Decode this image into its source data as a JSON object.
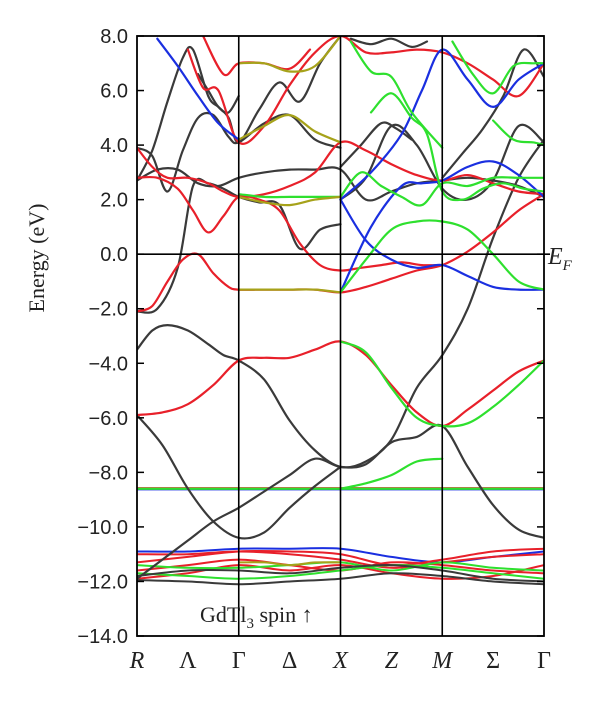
{
  "chart_data": {
    "type": "line",
    "title": "",
    "ylabel": "Energy (eV)",
    "xlabel": "",
    "ylim": [
      -14,
      8
    ],
    "yticks": [
      8.0,
      6.0,
      4.0,
      2.0,
      0.0,
      -2.0,
      -4.0,
      -6.0,
      -8.0,
      -10.0,
      -12.0,
      -14.0
    ],
    "ytick_labels": [
      "8.0",
      "6.0",
      "4.0",
      "2.0",
      "0.0",
      "−2.0",
      "−4.0",
      "−6.0",
      "−8.0",
      "−10.0",
      "−12.0",
      "−14.0"
    ],
    "kpath": [
      {
        "label": "R",
        "pos": 0.0,
        "italic": true,
        "vline": false
      },
      {
        "label": "Λ",
        "pos": 0.5,
        "italic": false,
        "vline": false
      },
      {
        "label": "Γ",
        "pos": 1.0,
        "italic": false,
        "vline": true
      },
      {
        "label": "Δ",
        "pos": 1.5,
        "italic": false,
        "vline": false
      },
      {
        "label": "X",
        "pos": 2.0,
        "italic": true,
        "vline": true
      },
      {
        "label": "Z",
        "pos": 2.5,
        "italic": true,
        "vline": false
      },
      {
        "label": "M",
        "pos": 3.0,
        "italic": true,
        "vline": true
      },
      {
        "label": "Σ",
        "pos": 3.5,
        "italic": false,
        "vline": false
      },
      {
        "label": "Γ",
        "pos": 4.0,
        "italic": false,
        "vline": false
      }
    ],
    "fermi_level": 0.0,
    "fermi_label": "E",
    "fermi_sub": "F",
    "annotation": {
      "main": "GdTl",
      "sub": "3",
      "rest": " spin ↑"
    },
    "colors": {
      "black": "#3a3a3a",
      "red": "#e8202a",
      "blue": "#1a2fe0",
      "green": "#2ee02e",
      "olive": "#a6a21a"
    },
    "series": [
      {
        "color": "black",
        "x": [
          0,
          0.25,
          0.5,
          0.75,
          1.0,
          1.25,
          1.5,
          1.75,
          2.0,
          2.25,
          2.5,
          2.75,
          3.0,
          3.25,
          3.5,
          3.75,
          4.0
        ],
        "y": [
          -11.9,
          -11.2,
          -10.5,
          -9.8,
          -9.3,
          -8.7,
          -8.1,
          -7.5,
          -7.8,
          -7.7,
          -6.9,
          -6.7,
          -6.3,
          -7.8,
          -9.2,
          -10.1,
          -10.4
        ]
      },
      {
        "color": "black",
        "x": [
          0,
          0.25,
          0.5,
          0.75,
          1.0,
          1.25,
          1.5,
          1.75,
          2.0
        ],
        "y": [
          -5.9,
          -7.0,
          -8.6,
          -9.8,
          -10.4,
          -10.2,
          -9.3,
          -8.5,
          -7.8
        ]
      },
      {
        "color": "black",
        "x": [
          0,
          0.15,
          0.3,
          0.5,
          0.7,
          0.85,
          1.0,
          1.25,
          1.5,
          1.75,
          2.0,
          2.25,
          2.5,
          2.75,
          3.0,
          3.25,
          3.5,
          3.75,
          4.0
        ],
        "y": [
          -3.5,
          -2.8,
          -2.6,
          -2.8,
          -3.3,
          -3.7,
          -3.9,
          -4.6,
          -6.1,
          -7.2,
          -7.8,
          -7.6,
          -6.8,
          -4.9,
          -3.7,
          -2.0,
          0.6,
          2.8,
          4.2
        ]
      },
      {
        "color": "black",
        "x": [
          0,
          0.2,
          0.4,
          0.6,
          0.8,
          1.0,
          1.25,
          1.5,
          1.75,
          2.0,
          2.25,
          2.5,
          2.75,
          3.0,
          3.25,
          3.5,
          3.75,
          4.0
        ],
        "y": [
          2.7,
          3.1,
          3.1,
          2.6,
          2.5,
          2.8,
          3.0,
          3.1,
          3.1,
          3.1,
          2.0,
          2.3,
          2.6,
          2.7,
          2.8,
          2.7,
          2.5,
          2.1
        ]
      },
      {
        "color": "black",
        "x": [
          0,
          0.2,
          0.4,
          0.55,
          0.7,
          0.85,
          1.0,
          1.2,
          1.4,
          1.6,
          1.8,
          2.0
        ],
        "y": [
          -2.1,
          -2.0,
          -0.5,
          2.5,
          2.6,
          2.4,
          2.1,
          1.9,
          1.8,
          0.2,
          0.9,
          1.1
        ]
      },
      {
        "color": "black",
        "x": [
          0,
          0.15,
          0.3,
          0.45,
          0.6,
          0.75,
          0.9,
          1.0,
          1.25,
          1.5,
          1.75,
          2.0
        ],
        "y": [
          3.9,
          3.6,
          2.3,
          3.8,
          5.0,
          5.1,
          4.3,
          4.1,
          4.8,
          5.1,
          4.2,
          3.9
        ]
      },
      {
        "color": "black",
        "x": [
          0,
          0.15,
          0.3,
          0.45,
          0.55,
          0.7,
          0.8,
          0.9,
          1.0,
          1.2,
          1.4,
          1.6,
          1.8,
          2.0
        ],
        "y": [
          2.7,
          3.8,
          5.6,
          7.2,
          7.5,
          5.8,
          5.4,
          5.0,
          4.1,
          5.3,
          6.3,
          5.6,
          7.0,
          8.0
        ]
      },
      {
        "color": "black",
        "x": [
          0.6,
          0.7,
          0.8,
          0.9,
          1.0
        ],
        "y": [
          6.6,
          6.0,
          5.4,
          5.2,
          5.8
        ]
      },
      {
        "color": "black",
        "x": [
          2.0,
          2.25,
          2.5,
          2.75,
          3.0,
          3.25,
          3.5,
          3.75,
          4.0
        ],
        "y": [
          2.0,
          2.8,
          4.7,
          4.0,
          2.4,
          2.0,
          2.7,
          4.7,
          4.1
        ]
      },
      {
        "color": "black",
        "x": [
          2.0,
          2.2,
          2.4,
          2.55,
          2.7
        ],
        "y": [
          3.2,
          4.0,
          4.8,
          4.6,
          4.2
        ]
      },
      {
        "color": "black",
        "x": [
          3.0,
          3.2,
          3.4,
          3.6,
          3.8,
          4.0
        ],
        "y": [
          2.8,
          3.7,
          4.6,
          5.8,
          7.5,
          6.5
        ]
      },
      {
        "color": "black",
        "x": [
          2.1,
          2.3,
          2.5,
          2.7,
          2.85
        ],
        "y": [
          7.9,
          7.7,
          7.9,
          7.6,
          7.8
        ]
      },
      {
        "color": "red",
        "x": [
          0,
          0.25,
          0.5,
          0.75,
          1.0,
          1.25,
          1.5,
          1.75,
          2.0,
          2.25,
          2.5,
          2.75,
          3.0,
          3.25,
          3.5,
          3.75,
          4.0
        ],
        "y": [
          -5.9,
          -5.8,
          -5.5,
          -4.8,
          -3.9,
          -3.8,
          -3.8,
          -3.5,
          -3.2,
          -3.7,
          -4.8,
          -5.8,
          -6.3,
          -5.7,
          -5.0,
          -4.3,
          -3.9
        ]
      },
      {
        "color": "red",
        "x": [
          0,
          0.15,
          0.3,
          0.45,
          0.6,
          0.75,
          0.9,
          1.0,
          1.25,
          1.5,
          1.75,
          2.0,
          2.25,
          2.5,
          2.75,
          3.0,
          3.25,
          3.5,
          3.75,
          4.0
        ],
        "y": [
          -2.1,
          -1.9,
          -1.0,
          -0.2,
          0.0,
          -0.7,
          -1.2,
          -1.3,
          -1.3,
          -1.3,
          -1.3,
          -1.4,
          -1.2,
          -0.9,
          -0.6,
          -0.4,
          0.1,
          0.8,
          1.6,
          2.2
        ]
      },
      {
        "color": "red",
        "x": [
          0,
          0.2,
          0.4,
          0.55,
          0.7,
          0.85,
          1.0,
          1.2,
          1.4,
          1.6,
          1.8,
          2.0,
          2.2,
          2.4,
          2.6,
          2.8,
          3.0
        ],
        "y": [
          2.8,
          2.8,
          2.4,
          1.6,
          0.8,
          1.4,
          2.1,
          2.0,
          1.6,
          0.4,
          -0.4,
          -0.6,
          -0.5,
          -0.4,
          -0.3,
          -0.4,
          -0.4
        ]
      },
      {
        "color": "red",
        "x": [
          0,
          0.15,
          0.3,
          0.5,
          0.7,
          0.85,
          1.0,
          1.25,
          1.5,
          1.75,
          2.0,
          2.25,
          2.5,
          2.75,
          3.0,
          3.25,
          3.5,
          3.75,
          4.0
        ],
        "y": [
          3.9,
          3.2,
          2.8,
          2.8,
          2.6,
          2.3,
          2.1,
          2.2,
          2.5,
          3.0,
          4.1,
          3.8,
          3.3,
          2.9,
          2.7,
          2.9,
          2.6,
          2.3,
          2.2
        ]
      },
      {
        "color": "red",
        "x": [
          0.5,
          0.65,
          0.8,
          1.0,
          1.25,
          1.5,
          1.75,
          2.0,
          2.25,
          2.5,
          2.75,
          3.0,
          3.25,
          3.5,
          3.75,
          4.0
        ],
        "y": [
          7.5,
          6.1,
          6.0,
          4.1,
          4.7,
          6.2,
          7.4,
          8.0,
          7.4,
          7.4,
          7.5,
          7.4,
          7.0,
          6.4,
          5.8,
          7.0
        ]
      },
      {
        "color": "red",
        "x": [
          0.65,
          0.85,
          1.0,
          1.25,
          1.5,
          1.7
        ],
        "y": [
          8.0,
          6.6,
          7.0,
          7.0,
          6.8,
          7.5
        ]
      },
      {
        "color": "blue",
        "x": [
          0.2,
          0.4,
          0.6,
          0.8,
          1.0
        ],
        "y": [
          7.9,
          6.9,
          5.8,
          4.8,
          4.2
        ]
      },
      {
        "color": "blue",
        "x": [
          2.0,
          2.25,
          2.5,
          2.75,
          3.0,
          3.25,
          3.5,
          3.75,
          4.0
        ],
        "y": [
          2.0,
          0.5,
          -0.2,
          -0.5,
          -0.4,
          -0.8,
          -1.2,
          -1.3,
          -1.3
        ]
      },
      {
        "color": "blue",
        "x": [
          2.0,
          2.3,
          2.6,
          2.8,
          3.0,
          3.25,
          3.5,
          3.75,
          4.0
        ],
        "y": [
          -1.4,
          1.0,
          2.5,
          2.6,
          2.7,
          3.2,
          3.4,
          2.9,
          2.1
        ]
      },
      {
        "color": "blue",
        "x": [
          2.0,
          2.3,
          2.6,
          2.8,
          3.0,
          3.25,
          3.5,
          3.75,
          4.0
        ],
        "y": [
          2.0,
          3.0,
          4.4,
          6.0,
          7.5,
          6.4,
          5.4,
          6.4,
          7.0
        ]
      },
      {
        "color": "green",
        "x": [
          1.0,
          1.25,
          1.5,
          1.75,
          2.0
        ],
        "y": [
          2.2,
          2.1,
          2.1,
          2.1,
          2.1
        ]
      },
      {
        "color": "green",
        "x": [
          2.0,
          2.2,
          2.4,
          2.6,
          2.8,
          3.0,
          3.25,
          3.5,
          3.75,
          4.0
        ],
        "y": [
          2.1,
          3.0,
          2.5,
          2.1,
          1.8,
          2.6,
          2.5,
          2.8,
          2.8,
          2.8
        ]
      },
      {
        "color": "green",
        "x": [
          2.0,
          2.25,
          2.5,
          2.75,
          3.0,
          3.25,
          3.5,
          3.75,
          4.0
        ],
        "y": [
          -1.4,
          -0.2,
          0.9,
          1.2,
          1.2,
          0.9,
          0.0,
          -1.0,
          -1.3
        ]
      },
      {
        "color": "green",
        "x": [
          2.0,
          2.25,
          2.5,
          2.75,
          3.0,
          3.25,
          3.5,
          3.75,
          4.0
        ],
        "y": [
          -3.2,
          -3.6,
          -4.9,
          -6.0,
          -6.3,
          -6.2,
          -5.6,
          -4.8,
          -3.9
        ]
      },
      {
        "color": "green",
        "x": [
          2.0,
          2.25,
          2.5,
          2.75,
          3.0
        ],
        "y": [
          -8.6,
          -8.4,
          -8.1,
          -7.6,
          -7.5
        ]
      },
      {
        "color": "green",
        "x": [
          2.1,
          2.3,
          2.5,
          2.7,
          3.0
        ],
        "y": [
          7.8,
          6.7,
          6.5,
          5.2,
          3.9
        ]
      },
      {
        "color": "green",
        "x": [
          2.3,
          2.5,
          2.7,
          2.85,
          3.0,
          3.2,
          3.4,
          3.6,
          3.8,
          4.0
        ],
        "y": [
          5.2,
          5.9,
          5.0,
          4.4,
          2.3,
          2.0,
          2.4,
          2.6,
          2.4,
          2.3
        ]
      },
      {
        "color": "green",
        "x": [
          3.1,
          3.3,
          3.5,
          3.7,
          3.9,
          4.0
        ],
        "y": [
          7.8,
          6.6,
          5.9,
          6.9,
          7.0,
          7.0
        ]
      },
      {
        "color": "green",
        "x": [
          3.5,
          3.7,
          3.9,
          4.0
        ],
        "y": [
          4.9,
          4.2,
          4.1,
          4.0
        ]
      },
      {
        "color": "olive",
        "x": [
          1.0,
          1.25,
          1.5,
          1.75,
          2.0
        ],
        "y": [
          -1.3,
          -1.3,
          -1.3,
          -1.3,
          -1.4
        ]
      },
      {
        "color": "olive",
        "x": [
          1.0,
          1.25,
          1.5,
          1.75,
          2.0
        ],
        "y": [
          2.1,
          1.9,
          1.8,
          2.0,
          2.1
        ]
      },
      {
        "color": "olive",
        "x": [
          1.0,
          1.25,
          1.5,
          1.75,
          2.0
        ],
        "y": [
          4.2,
          4.7,
          5.1,
          4.5,
          4.1
        ]
      },
      {
        "color": "olive",
        "x": [
          1.0,
          1.25,
          1.5,
          1.75,
          2.0
        ],
        "y": [
          7.0,
          7.0,
          6.7,
          6.9,
          8.0
        ]
      }
    ],
    "flat_bands": [
      {
        "color": "black",
        "y": -8.6
      },
      {
        "color": "red",
        "y": -8.58
      },
      {
        "color": "blue",
        "y": -8.62
      },
      {
        "color": "green",
        "y": -8.6
      }
    ],
    "low_bands": [
      {
        "color": "blue",
        "x": [
          0,
          0.5,
          1.0,
          1.5,
          2.0,
          2.5,
          3.0,
          3.5,
          4.0
        ],
        "y": [
          -10.9,
          -10.9,
          -10.8,
          -10.8,
          -10.8,
          -11.1,
          -11.3,
          -11.1,
          -10.9
        ]
      },
      {
        "color": "red",
        "x": [
          0,
          0.5,
          1.0,
          1.5,
          2.0,
          2.5,
          3.0,
          3.5,
          4.0
        ],
        "y": [
          -11.3,
          -11.1,
          -10.9,
          -10.9,
          -11.0,
          -11.4,
          -11.2,
          -10.9,
          -10.8
        ]
      },
      {
        "color": "red",
        "x": [
          0,
          0.5,
          1.0,
          1.5,
          2.0,
          2.5,
          3.0,
          3.5,
          4.0
        ],
        "y": [
          -11.0,
          -11.0,
          -10.9,
          -11.0,
          -11.2,
          -11.5,
          -11.3,
          -11.1,
          -11.0
        ]
      },
      {
        "color": "red",
        "x": [
          0,
          0.5,
          1.0,
          1.5,
          2.0,
          2.5,
          3.0,
          3.5,
          4.0
        ],
        "y": [
          -11.6,
          -11.4,
          -11.2,
          -11.4,
          -11.6,
          -11.3,
          -11.4,
          -11.6,
          -11.7
        ]
      },
      {
        "color": "red",
        "x": [
          0,
          0.5,
          1.0,
          1.5,
          2.0,
          2.5,
          3.0,
          3.5,
          4.0
        ],
        "y": [
          -11.9,
          -11.7,
          -11.4,
          -11.6,
          -11.4,
          -11.7,
          -11.9,
          -11.8,
          -11.4
        ]
      },
      {
        "color": "green",
        "x": [
          0,
          0.5,
          1.0,
          1.5,
          2.0,
          2.5,
          3.0,
          3.5,
          4.0
        ],
        "y": [
          -11.4,
          -11.5,
          -11.5,
          -11.4,
          -11.3,
          -11.6,
          -11.3,
          -11.5,
          -11.6
        ]
      },
      {
        "color": "green",
        "x": [
          0,
          0.5,
          1.0,
          1.5,
          2.0,
          2.5,
          3.0,
          3.5,
          4.0
        ],
        "y": [
          -11.7,
          -11.8,
          -11.9,
          -11.8,
          -11.6,
          -11.4,
          -11.5,
          -11.7,
          -11.9
        ]
      },
      {
        "color": "black",
        "x": [
          0,
          0.5,
          1.0,
          1.5,
          2.0,
          2.5,
          3.0,
          3.5,
          4.0
        ],
        "y": [
          -11.8,
          -11.6,
          -11.6,
          -11.7,
          -11.5,
          -11.4,
          -11.6,
          -11.9,
          -12.0
        ]
      },
      {
        "color": "black",
        "x": [
          0,
          0.5,
          1.0,
          1.5,
          2.0,
          2.5,
          3.0,
          3.5,
          4.0
        ],
        "y": [
          -11.95,
          -12.0,
          -12.1,
          -12.0,
          -11.9,
          -11.7,
          -11.8,
          -12.0,
          -12.1
        ]
      },
      {
        "color": "olive",
        "x": [
          1.0,
          1.25,
          1.5,
          1.75,
          2.0
        ],
        "y": [
          -11.3,
          -11.3,
          -11.4,
          -11.3,
          -11.3
        ]
      }
    ]
  }
}
